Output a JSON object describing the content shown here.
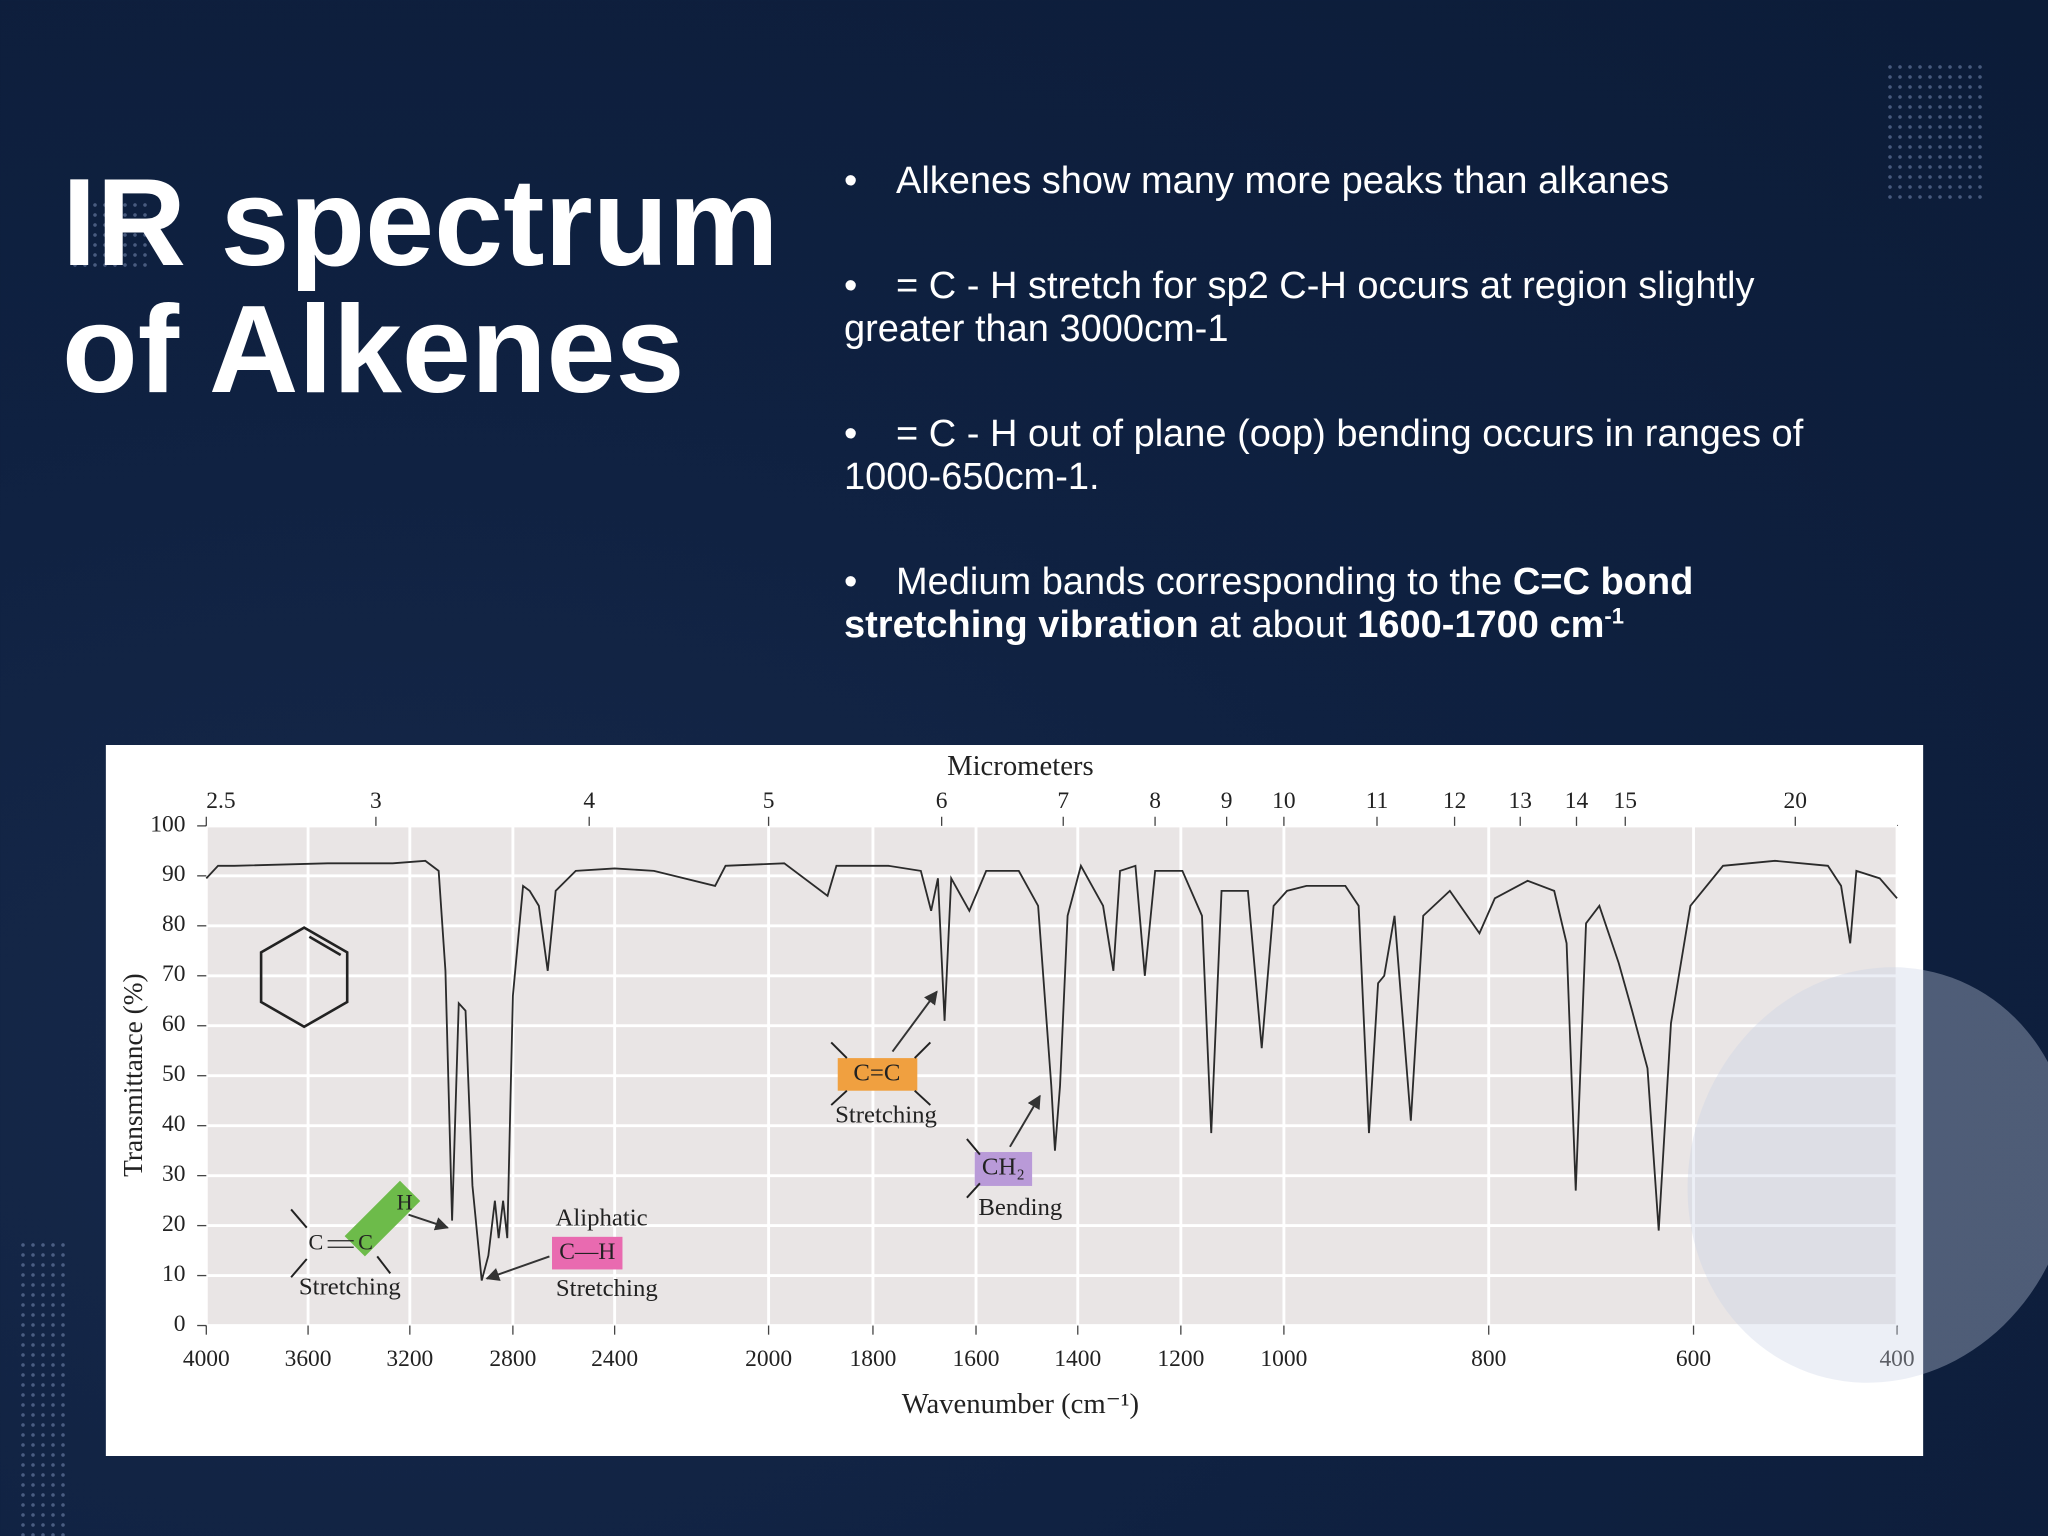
{
  "slide": {
    "title": "IR spectrum of Alkenes",
    "bullets": [
      {
        "runs": [
          {
            "text": "Alkenes show many more peaks than alkanes"
          }
        ]
      },
      {
        "runs": [
          {
            "text": "= C - H  stretch for sp2  C-H  occurs at region slightly greater than 3000cm-1"
          }
        ]
      },
      {
        "runs": [
          {
            "text": "= C - H out of plane (oop) bending occurs in ranges of 1000-650cm-1."
          }
        ]
      },
      {
        "runs": [
          {
            "text": "Medium bands corresponding to the "
          },
          {
            "text": "C=C bond stretching vibration",
            "bold": true
          },
          {
            "text": " at about "
          },
          {
            "text": "1600-1700 cm",
            "bold": true
          },
          {
            "text": "-1",
            "bold": true,
            "sup": true
          }
        ]
      }
    ]
  },
  "chart_data": {
    "type": "line",
    "x_label": "Wavenumber (cm⁻¹)",
    "x2_label": "Micrometers",
    "y_label": "Transmittance (%)",
    "x": [
      4000,
      3954,
      3890,
      3523,
      3267,
      3140,
      3088,
      3062,
      3036,
      3010,
      2984,
      2957,
      2921,
      2895,
      2870,
      2855,
      2838,
      2822,
      2800,
      2760,
      2734,
      2698,
      2663,
      2632,
      2553,
      2400,
      2298,
      2139,
      2112,
      1970,
      1887,
      1870,
      1770,
      1707,
      1687,
      1674,
      1661,
      1648,
      1613,
      1580,
      1516,
      1478,
      1452,
      1445,
      1435,
      1420,
      1394,
      1351,
      1331,
      1318,
      1288,
      1270,
      1250,
      1197,
      1159,
      1141,
      1121,
      1070,
      1043,
      1020,
      997,
      978,
      940,
      927,
      917,
      908,
      902,
      892,
      876,
      864,
      838,
      809,
      794,
      762,
      736,
      724,
      715,
      705,
      692,
      673,
      660,
      645,
      634,
      622,
      603,
      571,
      520,
      468,
      455,
      446,
      440,
      417,
      400
    ],
    "series": [
      {
        "color": "#2b2b2b",
        "values": [
          89.5,
          92,
          92,
          92.5,
          92.5,
          93,
          91,
          71,
          21,
          64.5,
          63,
          28,
          9,
          14,
          25,
          17.5,
          25,
          17.5,
          66,
          88,
          87,
          84,
          71,
          87,
          91,
          91.5,
          91,
          88,
          92,
          92.5,
          86,
          92,
          92,
          91,
          83,
          89.5,
          61,
          89.5,
          83,
          91,
          91,
          84,
          48,
          35,
          48,
          82,
          92,
          84,
          71,
          91,
          92,
          70,
          91,
          91,
          82,
          38.5,
          87,
          87,
          55.5,
          84,
          87,
          88,
          88,
          84,
          38.5,
          68.5,
          70,
          82,
          41,
          82,
          87,
          78.5,
          85.5,
          89,
          87,
          76.5,
          27,
          80.5,
          84,
          72.5,
          63,
          51.5,
          19,
          60.5,
          84,
          92,
          93,
          92,
          88,
          76.5,
          91,
          89.5,
          85.5
        ]
      }
    ],
    "xlim": [
      4000,
      400
    ],
    "xticks": [
      4000,
      3600,
      3200,
      2800,
      2400,
      2000,
      1800,
      1600,
      1400,
      1200,
      1000,
      800,
      600,
      400
    ],
    "x2ticks": [
      2.5,
      3,
      4,
      5,
      6,
      7,
      8,
      9,
      10,
      11,
      12,
      13,
      14,
      15,
      20
    ],
    "ylim": [
      0,
      100
    ],
    "yticks": [
      0,
      10,
      20,
      30,
      40,
      50,
      60,
      70,
      80,
      90,
      100
    ],
    "grid": true,
    "annotations": [
      {
        "texts": [
          "C",
          "C",
          "H",
          "Stretching"
        ]
      },
      {
        "texts": [
          "Aliphatic",
          "C—H",
          "Stretching"
        ]
      },
      {
        "texts": [
          "C=C",
          "Stretching"
        ]
      },
      {
        "texts": [
          "CH₂",
          "Bending"
        ]
      }
    ]
  }
}
